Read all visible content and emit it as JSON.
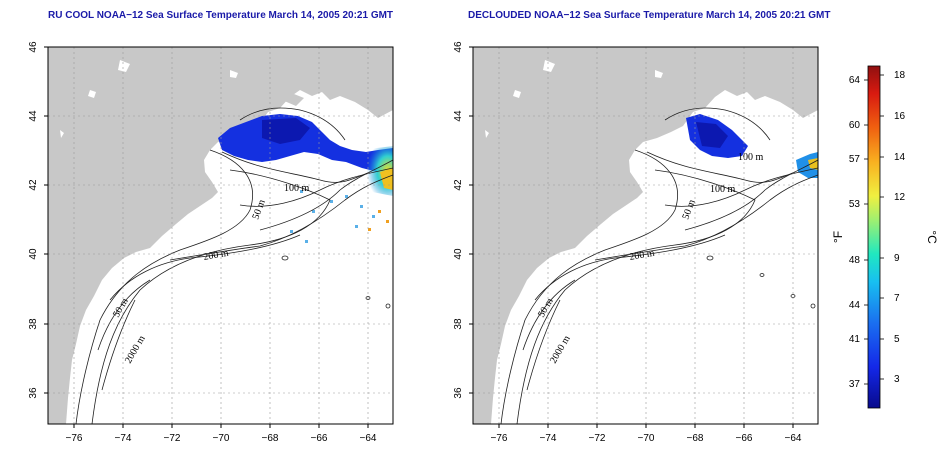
{
  "maps": [
    {
      "title": "RU COOL NOAA−12 Sea Surface Temperature March 14, 2005 20:21 GMT",
      "contour_labels": [
        "100 m",
        "50 m",
        "200 m",
        "50 m",
        "2000 m"
      ]
    },
    {
      "title": "DECLOUDED NOAA−12 Sea Surface Temperature March 14, 2005 20:21 GMT",
      "contour_labels": [
        "100 m",
        "100 m",
        "50 m",
        "200 m",
        "50 m",
        "2000 m"
      ]
    }
  ],
  "axes": {
    "x_ticks": [
      "−76",
      "−74",
      "−72",
      "−70",
      "−68",
      "−66",
      "−64"
    ],
    "y_ticks": [
      "36",
      "38",
      "40",
      "42",
      "44",
      "46"
    ]
  },
  "colorbar": {
    "f_unit": "°F",
    "c_unit": "°C",
    "f_ticks": [
      "64",
      "60",
      "57",
      "53",
      "48",
      "44",
      "41",
      "37"
    ],
    "c_ticks": [
      "18",
      "16",
      "14",
      "12",
      "9",
      "7",
      "5",
      "3"
    ]
  },
  "colors": {
    "land": "#c8c8c8",
    "title": "#1a1aa8",
    "cold": "#1428e0",
    "warm": "#e02010"
  }
}
